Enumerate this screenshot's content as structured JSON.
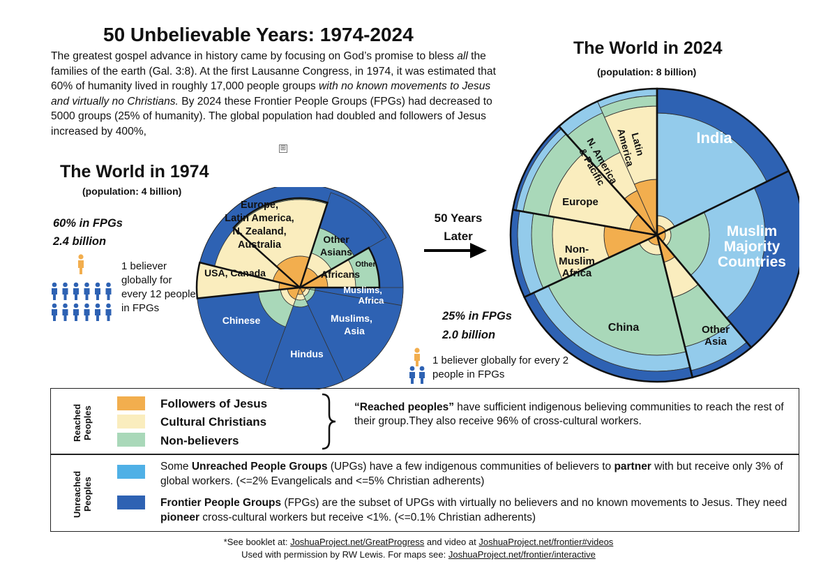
{
  "title": "50 Unbelievable Years: 1974-2024",
  "intro": {
    "s1": "The greatest gospel advance in history came by focusing on God’s promise to bless ",
    "s1_italic": "all",
    "s2": " the families of the earth (Gal. 3:8). At the first Lausanne Congress, in 1974, it was estimated that 60% of humanity lived in roughly 17,000 people groups ",
    "s2_italic": "with no known movements to Jesus and virtually no Christians.",
    "s3": " By 2024 these Frontier People Groups (FPGs) had decreased to 5000 groups (25% of humanity). The global population had doubled and followers of Jesus increased by 400%,"
  },
  "expand_icon": "⊞",
  "world1974": {
    "title": "The World in 1974",
    "population": "(population: 4 billion)",
    "fpg_pct": "60% in FPGs",
    "fpg_num": "2.4  billion",
    "ratio": "1 believer globally for every 12 people in FPGs",
    "labels": {
      "europe": [
        "Europe,",
        "Latin America,",
        "N. Zealand,",
        "Australia"
      ],
      "other_asians": [
        "Other",
        "Asians"
      ],
      "other_africans_1": "Other",
      "other_africans_2": "Africans",
      "usa": "USA, Canada",
      "muslims_africa": [
        "Muslims,",
        "Africa"
      ],
      "muslims_asia": [
        "Muslims,",
        "Asia"
      ],
      "chinese": "Chinese",
      "hindus": "Hindus"
    }
  },
  "arrow": {
    "line1": "50 Years",
    "line2": "Later"
  },
  "world2024": {
    "title": "The World in 2024",
    "population": "(population: 8 billion)",
    "fpg_pct": "25% in FPGs",
    "fpg_num": "2.0  billion",
    "ratio": "1 believer globally for every 2 people in FPGs",
    "labels": {
      "india": "India",
      "muslim": [
        "Muslim",
        "Majority",
        "Countries"
      ],
      "latin_america": [
        "Latin",
        "America"
      ],
      "na_pacific": [
        "N. America",
        "& Pacific"
      ],
      "europe": "Europe",
      "non_muslim_africa": [
        "Non-",
        "Muslim",
        "Africa"
      ],
      "china": "China",
      "other_asia": [
        "Other",
        "Asia"
      ]
    }
  },
  "legend": {
    "reached_label": "Reached Peoples",
    "unreached_label": "Unreached Peoples",
    "items": [
      {
        "label": "Followers of Jesus",
        "color": "#F2AE4E"
      },
      {
        "label": "Cultural Christians",
        "color": "#FAEDBE"
      },
      {
        "label": "Non-believers",
        "color": "#A9D8B9"
      }
    ],
    "reached_desc_bold": "“Reached peoples”",
    "reached_desc": " have sufficient indigenous believing communities to reach the rest of their group.They also receive 96% of cross-cultural workers.",
    "upg": {
      "color": "#4FB0E6",
      "t1": "Some ",
      "b1": "Unreached People Groups",
      "t2": " (UPGs) have a few indigenous communities of believers to ",
      "b2": "partner",
      "t3": " with but receive only 3% of global workers. (<=2% Evangelicals and <=5% Christian adherents)"
    },
    "fpg": {
      "color": "#2E62B3",
      "b1": "Frontier People Groups",
      "t1": " (FPGs) are the subset of UPGs with virtually no believers and no known movements to Jesus. They need ",
      "b2": "pioneer",
      "t2": " cross-cultural workers but receive <1%. (<=0.1% Christian adherents)"
    }
  },
  "footer": {
    "l1_a": "*See booklet at: ",
    "l1_link1": "JoshuaProject.net/GreatProgress",
    "l1_b": " and video at ",
    "l1_link2": "JoshuaProject.net/frontier#videos",
    "l2_a": "Used with permission by RW Lewis. For maps see: ",
    "l2_link": "JoshuaProject.net/frontier/interactive"
  },
  "colors": {
    "orange": "#F2AE4E",
    "cream": "#FAEDBE",
    "green": "#A9D8B9",
    "light_blue": "#4FB0E6",
    "pale_blue": "#93CBEB",
    "dark_blue": "#2E62B3"
  }
}
